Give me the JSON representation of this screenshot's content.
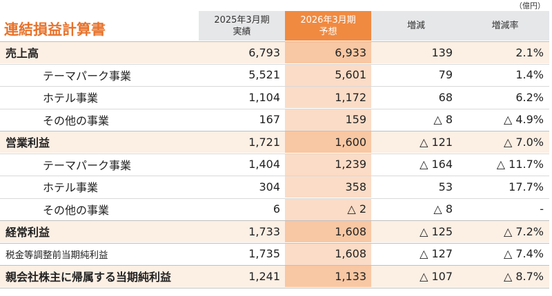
{
  "unit": "（億円）",
  "title": "連結損益計算書",
  "columns": {
    "fy25": [
      "2025年3月期",
      "実績"
    ],
    "fy26": [
      "2026年3月期",
      "予想"
    ],
    "diff": "増減",
    "rate": "増減率"
  },
  "rows": [
    {
      "label": "売上高",
      "fy25": "6,793",
      "fy26": "6,933",
      "diff": "139",
      "rate": "2.1%"
    },
    {
      "label": "テーマパーク事業",
      "fy25": "5,521",
      "fy26": "5,601",
      "diff": "79",
      "rate": "1.4%"
    },
    {
      "label": "ホテル事業",
      "fy25": "1,104",
      "fy26": "1,172",
      "diff": "68",
      "rate": "6.2%"
    },
    {
      "label": "その他の事業",
      "fy25": "167",
      "fy26": "159",
      "diff": "△ 8",
      "rate": "△ 4.9%"
    },
    {
      "label": "営業利益",
      "fy25": "1,721",
      "fy26": "1,600",
      "diff": "△ 121",
      "rate": "△ 7.0%"
    },
    {
      "label": "テーマパーク事業",
      "fy25": "1,404",
      "fy26": "1,239",
      "diff": "△ 164",
      "rate": "△ 11.7%"
    },
    {
      "label": "ホテル事業",
      "fy25": "304",
      "fy26": "358",
      "diff": "53",
      "rate": "17.7%"
    },
    {
      "label": "その他の事業",
      "fy25": "6",
      "fy26": "△ 2",
      "diff": "△ 8",
      "rate": "-"
    },
    {
      "label": "経常利益",
      "fy25": "1,733",
      "fy26": "1,608",
      "diff": "△ 125",
      "rate": "△ 7.2%"
    },
    {
      "label": "税金等調整前当期純利益",
      "fy25": "1,735",
      "fy26": "1,608",
      "diff": "△ 127",
      "rate": "△ 7.4%"
    },
    {
      "label": "親会社株主に帰属する当期純利益",
      "fy25": "1,241",
      "fy26": "1,133",
      "diff": "△ 107",
      "rate": "△ 8.7%"
    }
  ],
  "colors": {
    "accent": "#f08a41",
    "title": "#e8722a",
    "header_gray": "#e6e7e9",
    "main_row": "#fcefe4",
    "forecast_col": "#fbdcc6"
  }
}
